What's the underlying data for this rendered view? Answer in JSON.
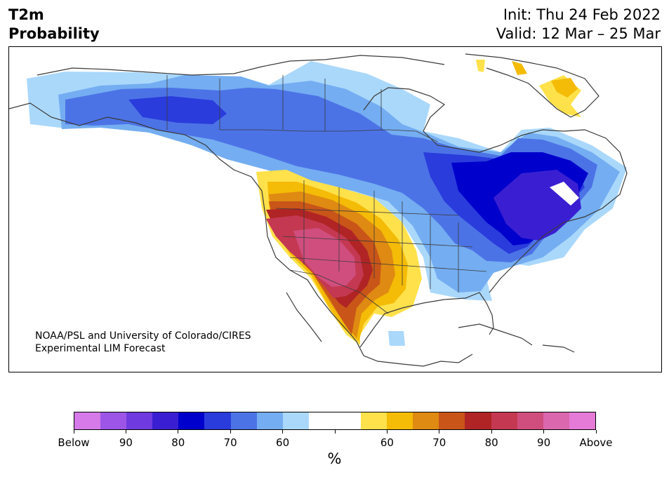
{
  "header": {
    "title_line1": "T2m",
    "title_line2": "Probability",
    "init": "Init: Thu 24 Feb 2022",
    "valid": "Valid: 12 Mar – 25 Mar"
  },
  "map": {
    "credit_line1": "NOAA/PSL and University of Colorado/CIRES",
    "credit_line2": "Experimental LIM Forecast",
    "colors": {
      "coast": "#3a3a3a",
      "below_50": "#aad8fb",
      "below_60": "#74adf1",
      "below_70": "#4c73e6",
      "below_75": "#2a3cdc",
      "below_80": "#0000cc",
      "below_85": "#3a1fd2",
      "above_50": "#ffe14b",
      "above_60": "#f4bb07",
      "above_65": "#df8a12",
      "above_70": "#c95519",
      "above_75": "#b02425",
      "above_80": "#c43852",
      "above_85": "#d04e7e"
    }
  },
  "colorbar": {
    "colors": [
      "#d67ae9",
      "#9c55e6",
      "#6f3be0",
      "#3a1fd2",
      "#0000cc",
      "#2a3cdc",
      "#4c73e6",
      "#74adf1",
      "#aad8fb",
      "#ffffff",
      "#ffffff",
      "#ffe14b",
      "#f4bb07",
      "#df8a12",
      "#c95519",
      "#b02425",
      "#c43852",
      "#d04e7e",
      "#db67ae",
      "#e57ad7"
    ],
    "tick_labels": [
      "Below",
      "90",
      "80",
      "70",
      "60",
      "",
      "60",
      "70",
      "80",
      "90",
      "Above"
    ],
    "unit": "%"
  }
}
